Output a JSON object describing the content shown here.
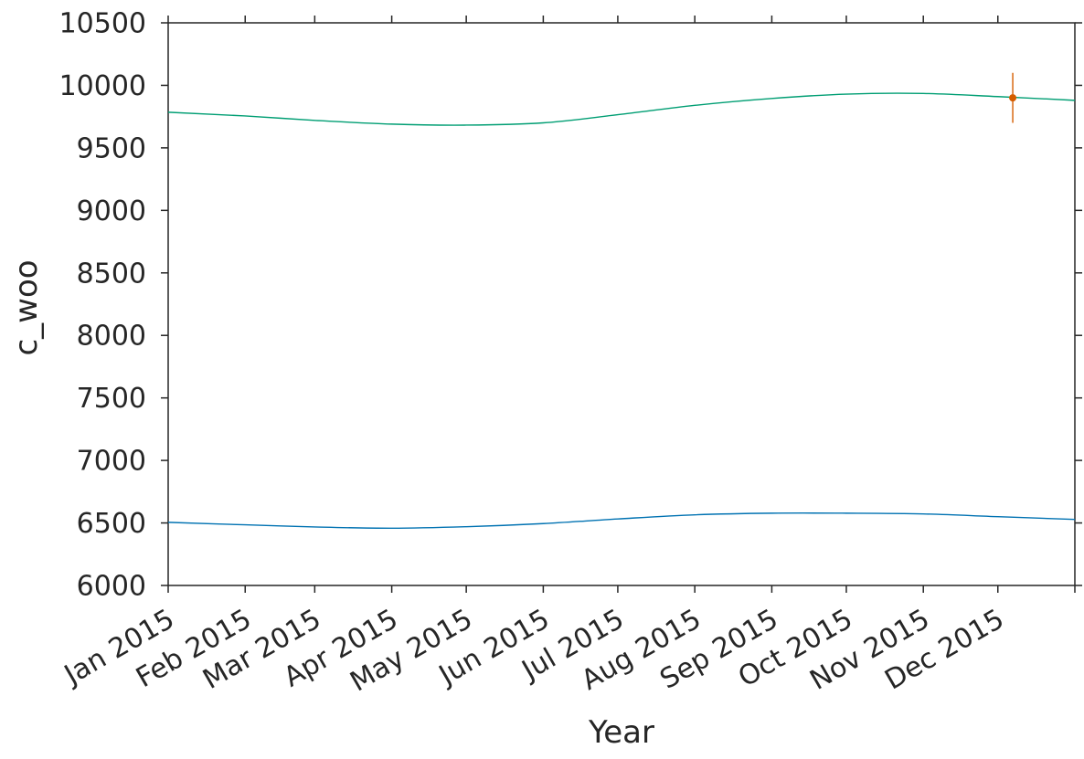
{
  "chart_data": {
    "type": "line",
    "xlabel": "Year",
    "ylabel": "c_woo",
    "x_tick_labels": [
      "Jan 2015",
      "Feb 2015",
      "Mar 2015",
      "Apr 2015",
      "May 2015",
      "Jun 2015",
      "Jul 2015",
      "Aug 2015",
      "Sep 2015",
      "Oct 2015",
      "Nov 2015",
      "Dec 2015"
    ],
    "x_ticks": [
      "2015-01-01",
      "2015-02-01",
      "2015-03-01",
      "2015-04-01",
      "2015-05-01",
      "2015-06-01",
      "2015-07-01",
      "2015-08-01",
      "2015-09-01",
      "2015-10-01",
      "2015-11-01",
      "2015-12-01"
    ],
    "xlim": [
      "2015-01-01",
      "2016-01-01"
    ],
    "ylim": [
      6000,
      10500
    ],
    "y_ticks": [
      6000,
      6500,
      7000,
      7500,
      8000,
      8500,
      9000,
      9500,
      10000,
      10500
    ],
    "y_tick_labels": [
      "6000",
      "6500",
      "7000",
      "7500",
      "8000",
      "8500",
      "9000",
      "9500",
      "10000",
      "10500"
    ],
    "grid": false,
    "series": [
      {
        "color": "#009E73",
        "x": [
          "2015-01-01",
          "2015-02-01",
          "2015-03-01",
          "2015-04-01",
          "2015-05-01",
          "2015-06-01",
          "2015-07-01",
          "2015-08-01",
          "2015-09-01",
          "2015-10-01",
          "2015-11-01",
          "2015-12-01",
          "2016-01-01"
        ],
        "y": [
          9785,
          9755,
          9720,
          9690,
          9682,
          9700,
          9765,
          9840,
          9895,
          9930,
          9935,
          9910,
          9880
        ]
      },
      {
        "color": "#0072B2",
        "x": [
          "2015-01-01",
          "2015-02-01",
          "2015-03-01",
          "2015-04-01",
          "2015-05-01",
          "2015-06-01",
          "2015-07-01",
          "2015-08-01",
          "2015-09-01",
          "2015-10-01",
          "2015-11-01",
          "2015-12-01",
          "2016-01-01"
        ],
        "y": [
          6505,
          6485,
          6468,
          6458,
          6470,
          6495,
          6532,
          6565,
          6578,
          6578,
          6572,
          6550,
          6528
        ]
      }
    ],
    "errorbar": {
      "color": "#D55E00",
      "x": "2015-12-07",
      "y": 9900,
      "y_low": 9700,
      "y_high": 10100
    }
  }
}
